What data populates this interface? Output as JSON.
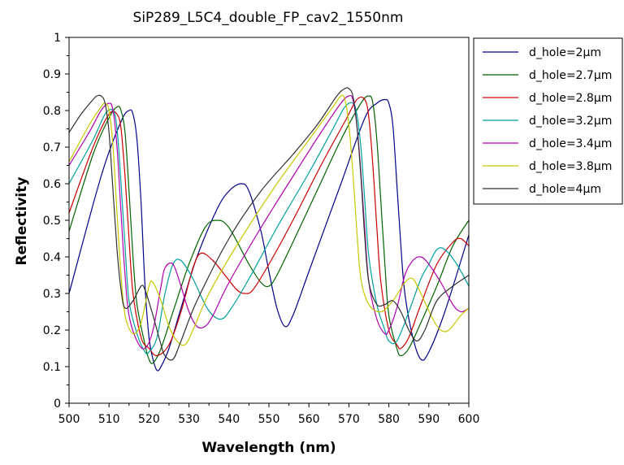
{
  "chart_data": {
    "type": "line",
    "title": "SiP289_L5C4_double_FP_cav2_1550nm",
    "xlabel": "Wavelength (nm)",
    "ylabel": "Reflectivity",
    "xlim": [
      500,
      600
    ],
    "ylim": [
      0,
      1
    ],
    "x_ticks": [
      "500",
      "510",
      "520",
      "530",
      "540",
      "550",
      "560",
      "570",
      "580",
      "590",
      "600"
    ],
    "y_ticks": [
      "0",
      "0.1",
      "0.2",
      "0.3",
      "0.4",
      "0.5",
      "0.6",
      "0.7",
      "0.8",
      "0.9",
      "1"
    ],
    "grid": false,
    "legend_position": "right",
    "series": [
      {
        "name": "d_hole=2µm",
        "color": "#00008b",
        "points": [
          [
            500,
            0.3
          ],
          [
            508,
            0.62
          ],
          [
            513,
            0.77
          ],
          [
            515,
            0.8
          ],
          [
            516,
            0.79
          ],
          [
            517,
            0.72
          ],
          [
            518,
            0.55
          ],
          [
            519,
            0.32
          ],
          [
            520,
            0.18
          ],
          [
            521,
            0.12
          ],
          [
            522,
            0.09
          ],
          [
            523,
            0.1
          ],
          [
            525,
            0.15
          ],
          [
            528,
            0.26
          ],
          [
            532,
            0.4
          ],
          [
            537,
            0.53
          ],
          [
            540,
            0.58
          ],
          [
            543,
            0.6
          ],
          [
            545,
            0.58
          ],
          [
            548,
            0.47
          ],
          [
            550,
            0.36
          ],
          [
            552,
            0.26
          ],
          [
            554,
            0.21
          ],
          [
            556,
            0.24
          ],
          [
            560,
            0.36
          ],
          [
            568,
            0.6
          ],
          [
            574,
            0.78
          ],
          [
            577,
            0.82
          ],
          [
            579,
            0.83
          ],
          [
            580,
            0.82
          ],
          [
            581,
            0.76
          ],
          [
            582,
            0.6
          ],
          [
            583,
            0.43
          ],
          [
            584,
            0.3
          ],
          [
            586,
            0.18
          ],
          [
            588,
            0.12
          ],
          [
            590,
            0.14
          ],
          [
            594,
            0.25
          ],
          [
            600,
            0.46
          ]
        ]
      },
      {
        "name": "d_hole=2.7µm",
        "color": "#006400",
        "points": [
          [
            500,
            0.47
          ],
          [
            506,
            0.68
          ],
          [
            510,
            0.78
          ],
          [
            512,
            0.81
          ],
          [
            513,
            0.8
          ],
          [
            514,
            0.74
          ],
          [
            515,
            0.58
          ],
          [
            516,
            0.4
          ],
          [
            517,
            0.27
          ],
          [
            519,
            0.16
          ],
          [
            520,
            0.12
          ],
          [
            521,
            0.11
          ],
          [
            523,
            0.15
          ],
          [
            526,
            0.25
          ],
          [
            530,
            0.38
          ],
          [
            534,
            0.48
          ],
          [
            537,
            0.5
          ],
          [
            540,
            0.48
          ],
          [
            545,
            0.38
          ],
          [
            548,
            0.33
          ],
          [
            550,
            0.32
          ],
          [
            552,
            0.35
          ],
          [
            556,
            0.44
          ],
          [
            562,
            0.58
          ],
          [
            568,
            0.72
          ],
          [
            573,
            0.82
          ],
          [
            575,
            0.84
          ],
          [
            576,
            0.82
          ],
          [
            577,
            0.72
          ],
          [
            578,
            0.55
          ],
          [
            579,
            0.38
          ],
          [
            580,
            0.24
          ],
          [
            582,
            0.15
          ],
          [
            583,
            0.13
          ],
          [
            585,
            0.15
          ],
          [
            588,
            0.22
          ],
          [
            592,
            0.32
          ],
          [
            596,
            0.43
          ],
          [
            600,
            0.5
          ]
        ]
      },
      {
        "name": "d_hole=2.8µm",
        "color": "#cc0000",
        "points": [
          [
            500,
            0.52
          ],
          [
            506,
            0.7
          ],
          [
            510,
            0.79
          ],
          [
            512,
            0.79
          ],
          [
            513,
            0.75
          ],
          [
            514,
            0.62
          ],
          [
            515,
            0.45
          ],
          [
            516,
            0.3
          ],
          [
            518,
            0.18
          ],
          [
            520,
            0.15
          ],
          [
            522,
            0.13
          ],
          [
            525,
            0.16
          ],
          [
            528,
            0.25
          ],
          [
            531,
            0.37
          ],
          [
            533,
            0.41
          ],
          [
            536,
            0.39
          ],
          [
            539,
            0.35
          ],
          [
            542,
            0.31
          ],
          [
            544,
            0.3
          ],
          [
            546,
            0.31
          ],
          [
            550,
            0.38
          ],
          [
            556,
            0.5
          ],
          [
            563,
            0.65
          ],
          [
            569,
            0.77
          ],
          [
            572,
            0.83
          ],
          [
            574,
            0.83
          ],
          [
            575,
            0.78
          ],
          [
            576,
            0.65
          ],
          [
            577,
            0.48
          ],
          [
            578,
            0.33
          ],
          [
            580,
            0.2
          ],
          [
            582,
            0.16
          ],
          [
            583,
            0.15
          ],
          [
            585,
            0.18
          ],
          [
            588,
            0.27
          ],
          [
            592,
            0.38
          ],
          [
            596,
            0.44
          ],
          [
            598,
            0.45
          ],
          [
            600,
            0.43
          ]
        ]
      },
      {
        "name": "d_hole=3.2µm",
        "color": "#00a0a0",
        "points": [
          [
            500,
            0.6
          ],
          [
            506,
            0.72
          ],
          [
            509,
            0.79
          ],
          [
            511,
            0.8
          ],
          [
            512,
            0.75
          ],
          [
            513,
            0.6
          ],
          [
            514,
            0.43
          ],
          [
            515,
            0.28
          ],
          [
            517,
            0.19
          ],
          [
            519,
            0.14
          ],
          [
            520,
            0.14
          ],
          [
            522,
            0.18
          ],
          [
            524,
            0.3
          ],
          [
            526,
            0.38
          ],
          [
            528,
            0.39
          ],
          [
            531,
            0.34
          ],
          [
            534,
            0.27
          ],
          [
            536,
            0.24
          ],
          [
            538,
            0.23
          ],
          [
            540,
            0.25
          ],
          [
            545,
            0.34
          ],
          [
            552,
            0.48
          ],
          [
            560,
            0.63
          ],
          [
            566,
            0.75
          ],
          [
            569,
            0.81
          ],
          [
            571,
            0.82
          ],
          [
            572,
            0.79
          ],
          [
            573,
            0.7
          ],
          [
            574,
            0.55
          ],
          [
            575,
            0.4
          ],
          [
            577,
            0.27
          ],
          [
            579,
            0.2
          ],
          [
            580,
            0.17
          ],
          [
            582,
            0.17
          ],
          [
            585,
            0.25
          ],
          [
            588,
            0.34
          ],
          [
            590,
            0.38
          ],
          [
            592,
            0.42
          ],
          [
            594,
            0.42
          ],
          [
            597,
            0.38
          ],
          [
            600,
            0.32
          ]
        ]
      },
      {
        "name": "d_hole=3.4µm",
        "color": "#b000b0",
        "points": [
          [
            500,
            0.65
          ],
          [
            505,
            0.74
          ],
          [
            508,
            0.8
          ],
          [
            510,
            0.82
          ],
          [
            511,
            0.8
          ],
          [
            512,
            0.7
          ],
          [
            513,
            0.52
          ],
          [
            514,
            0.35
          ],
          [
            515,
            0.24
          ],
          [
            517,
            0.17
          ],
          [
            519,
            0.15
          ],
          [
            521,
            0.2
          ],
          [
            523,
            0.32
          ],
          [
            524,
            0.37
          ],
          [
            526,
            0.38
          ],
          [
            528,
            0.32
          ],
          [
            530,
            0.25
          ],
          [
            532,
            0.21
          ],
          [
            534,
            0.21
          ],
          [
            536,
            0.24
          ],
          [
            540,
            0.33
          ],
          [
            548,
            0.48
          ],
          [
            556,
            0.62
          ],
          [
            563,
            0.74
          ],
          [
            568,
            0.82
          ],
          [
            570,
            0.84
          ],
          [
            571,
            0.83
          ],
          [
            572,
            0.76
          ],
          [
            573,
            0.63
          ],
          [
            574,
            0.47
          ],
          [
            575,
            0.33
          ],
          [
            577,
            0.23
          ],
          [
            579,
            0.19
          ],
          [
            580,
            0.2
          ],
          [
            582,
            0.26
          ],
          [
            584,
            0.35
          ],
          [
            586,
            0.39
          ],
          [
            588,
            0.4
          ],
          [
            590,
            0.38
          ],
          [
            593,
            0.33
          ],
          [
            596,
            0.27
          ],
          [
            598,
            0.25
          ],
          [
            600,
            0.26
          ]
        ]
      },
      {
        "name": "d_hole=3.8µm",
        "color": "#c8c800",
        "points": [
          [
            500,
            0.66
          ],
          [
            505,
            0.76
          ],
          [
            508,
            0.81
          ],
          [
            509,
            0.82
          ],
          [
            510,
            0.8
          ],
          [
            511,
            0.7
          ],
          [
            512,
            0.52
          ],
          [
            513,
            0.35
          ],
          [
            514,
            0.24
          ],
          [
            516,
            0.19
          ],
          [
            518,
            0.22
          ],
          [
            520,
            0.32
          ],
          [
            521,
            0.33
          ],
          [
            523,
            0.28
          ],
          [
            525,
            0.21
          ],
          [
            527,
            0.17
          ],
          [
            529,
            0.16
          ],
          [
            531,
            0.2
          ],
          [
            535,
            0.3
          ],
          [
            543,
            0.45
          ],
          [
            552,
            0.6
          ],
          [
            560,
            0.72
          ],
          [
            566,
            0.81
          ],
          [
            568,
            0.84
          ],
          [
            569,
            0.83
          ],
          [
            570,
            0.76
          ],
          [
            571,
            0.63
          ],
          [
            572,
            0.47
          ],
          [
            573,
            0.34
          ],
          [
            575,
            0.27
          ],
          [
            578,
            0.25
          ],
          [
            581,
            0.28
          ],
          [
            584,
            0.33
          ],
          [
            586,
            0.34
          ],
          [
            588,
            0.3
          ],
          [
            591,
            0.23
          ],
          [
            593,
            0.2
          ],
          [
            595,
            0.2
          ],
          [
            598,
            0.24
          ],
          [
            600,
            0.26
          ]
        ]
      },
      {
        "name": "d_hole=4µm",
        "color": "#303030",
        "points": [
          [
            500,
            0.74
          ],
          [
            503,
            0.79
          ],
          [
            506,
            0.83
          ],
          [
            507,
            0.84
          ],
          [
            508,
            0.84
          ],
          [
            509,
            0.82
          ],
          [
            510,
            0.74
          ],
          [
            511,
            0.58
          ],
          [
            512,
            0.42
          ],
          [
            513,
            0.31
          ],
          [
            514,
            0.26
          ],
          [
            516,
            0.28
          ],
          [
            518,
            0.32
          ],
          [
            519,
            0.31
          ],
          [
            521,
            0.24
          ],
          [
            523,
            0.16
          ],
          [
            524,
            0.13
          ],
          [
            526,
            0.12
          ],
          [
            528,
            0.17
          ],
          [
            532,
            0.28
          ],
          [
            540,
            0.45
          ],
          [
            548,
            0.58
          ],
          [
            556,
            0.68
          ],
          [
            562,
            0.76
          ],
          [
            567,
            0.84
          ],
          [
            569,
            0.86
          ],
          [
            570,
            0.86
          ],
          [
            571,
            0.84
          ],
          [
            572,
            0.76
          ],
          [
            573,
            0.62
          ],
          [
            574,
            0.45
          ],
          [
            575,
            0.33
          ],
          [
            577,
            0.27
          ],
          [
            579,
            0.27
          ],
          [
            581,
            0.28
          ],
          [
            583,
            0.25
          ],
          [
            585,
            0.2
          ],
          [
            587,
            0.17
          ],
          [
            589,
            0.2
          ],
          [
            592,
            0.28
          ],
          [
            596,
            0.32
          ],
          [
            600,
            0.35
          ]
        ]
      }
    ]
  }
}
